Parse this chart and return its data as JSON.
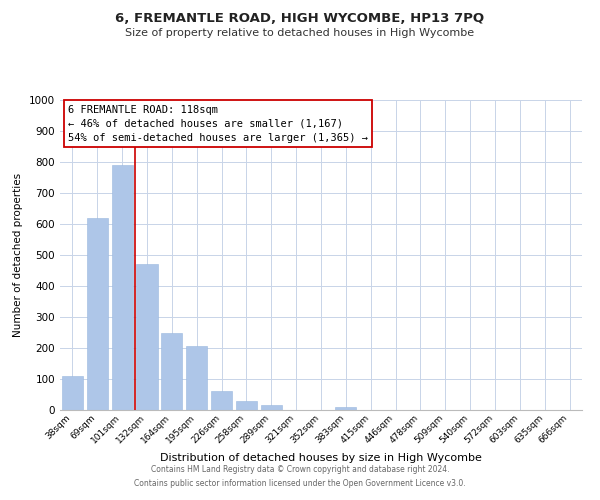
{
  "title": "6, FREMANTLE ROAD, HIGH WYCOMBE, HP13 7PQ",
  "subtitle": "Size of property relative to detached houses in High Wycombe",
  "xlabel": "Distribution of detached houses by size in High Wycombe",
  "ylabel": "Number of detached properties",
  "bar_labels": [
    "38sqm",
    "69sqm",
    "101sqm",
    "132sqm",
    "164sqm",
    "195sqm",
    "226sqm",
    "258sqm",
    "289sqm",
    "321sqm",
    "352sqm",
    "383sqm",
    "415sqm",
    "446sqm",
    "478sqm",
    "509sqm",
    "540sqm",
    "572sqm",
    "603sqm",
    "635sqm",
    "666sqm"
  ],
  "bar_values": [
    110,
    620,
    790,
    470,
    250,
    205,
    60,
    30,
    15,
    0,
    0,
    10,
    0,
    0,
    0,
    0,
    0,
    0,
    0,
    0,
    0
  ],
  "bar_color": "#aec6e8",
  "bar_edge_color": "#9ab8de",
  "vline_pos": 2.5,
  "vline_color": "#cc0000",
  "ylim": [
    0,
    1000
  ],
  "yticks": [
    0,
    100,
    200,
    300,
    400,
    500,
    600,
    700,
    800,
    900,
    1000
  ],
  "annotation_title": "6 FREMANTLE ROAD: 118sqm",
  "annotation_line1": "← 46% of detached houses are smaller (1,167)",
  "annotation_line2": "54% of semi-detached houses are larger (1,365) →",
  "annotation_box_color": "#ffffff",
  "annotation_box_edge": "#cc0000",
  "footer1": "Contains HM Land Registry data © Crown copyright and database right 2024.",
  "footer2": "Contains public sector information licensed under the Open Government Licence v3.0.",
  "background_color": "#ffffff",
  "grid_color": "#c8d4e8",
  "title_fontsize": 9.5,
  "subtitle_fontsize": 8.0,
  "xlabel_fontsize": 8.0,
  "ylabel_fontsize": 7.5,
  "xtick_fontsize": 6.5,
  "ytick_fontsize": 7.5,
  "annotation_fontsize": 7.5,
  "footer_fontsize": 5.5
}
